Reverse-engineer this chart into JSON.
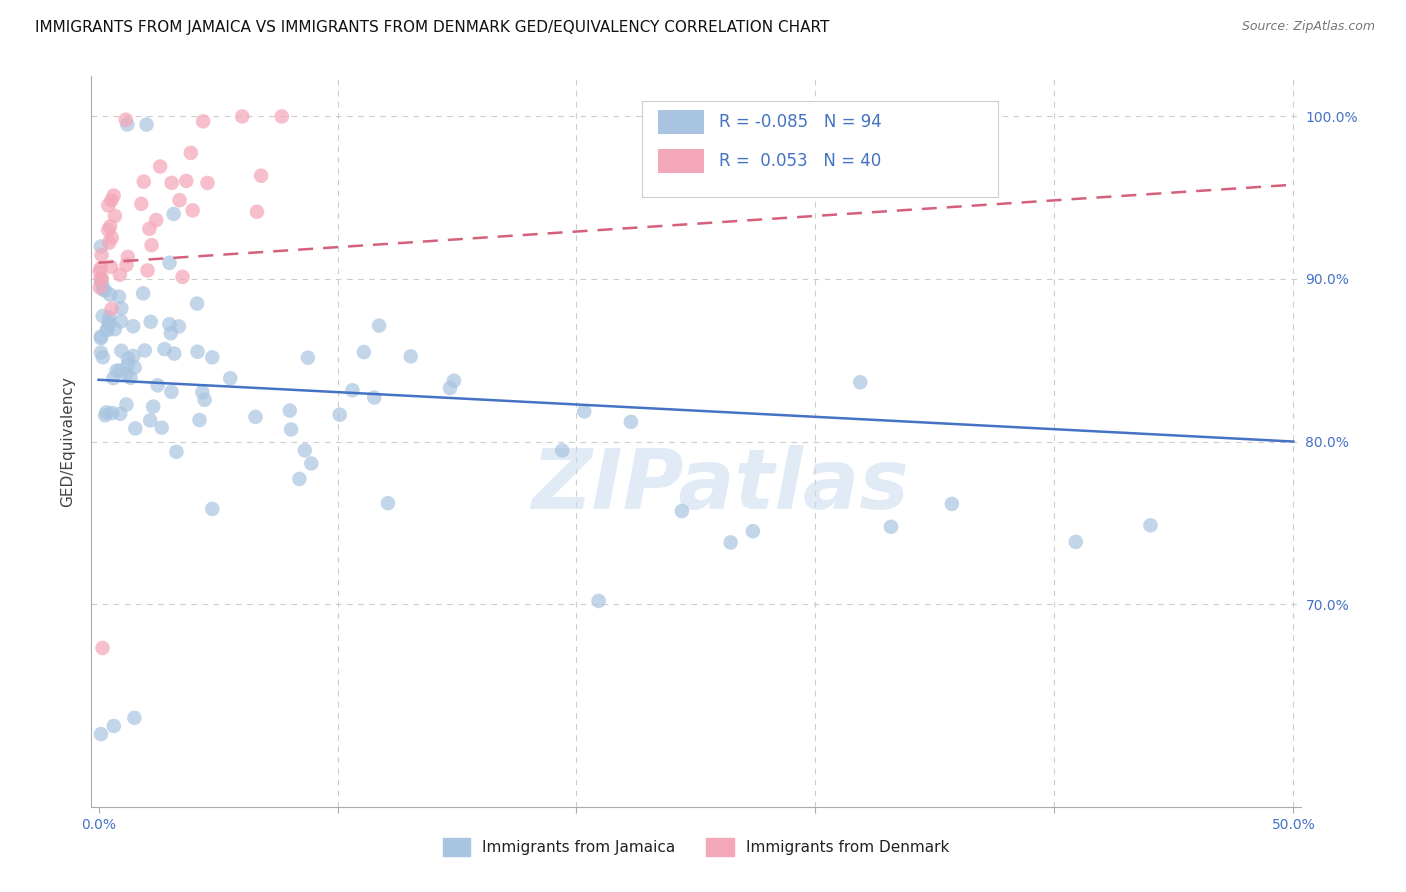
{
  "title": "IMMIGRANTS FROM JAMAICA VS IMMIGRANTS FROM DENMARK GED/EQUIVALENCY CORRELATION CHART",
  "source": "Source: ZipAtlas.com",
  "ylabel": "GED/Equivalency",
  "ylim": [
    0.575,
    1.025
  ],
  "xlim": [
    -0.003,
    0.503
  ],
  "ytick_vals": [
    0.7,
    0.8,
    0.9,
    1.0
  ],
  "ytick_labels": [
    "70.0%",
    "80.0%",
    "90.0%",
    "100.0%"
  ],
  "grid_color": "#cccccc",
  "background_color": "#ffffff",
  "axis_tick_color": "#4472c4",
  "title_fontsize": 11,
  "source_fontsize": 9,
  "jamaica_color": "#a8c4e0",
  "denmark_color": "#f4a7b9",
  "jamaica_line_color": "#4472c4",
  "denmark_line_color": "#d4607a",
  "legend_R_N_color": "#4472c4",
  "jamaica_R": -0.085,
  "jamaica_N": 94,
  "denmark_R": 0.053,
  "denmark_N": 40,
  "legend_label_jamaica": "Immigrants from Jamaica",
  "legend_label_denmark": "Immigrants from Denmark",
  "watermark": "ZIPatlas",
  "watermark_color": "#c5d8ee",
  "jamaica_trend": [
    0.838,
    0.8
  ],
  "denmark_trend": [
    0.91,
    0.958
  ]
}
